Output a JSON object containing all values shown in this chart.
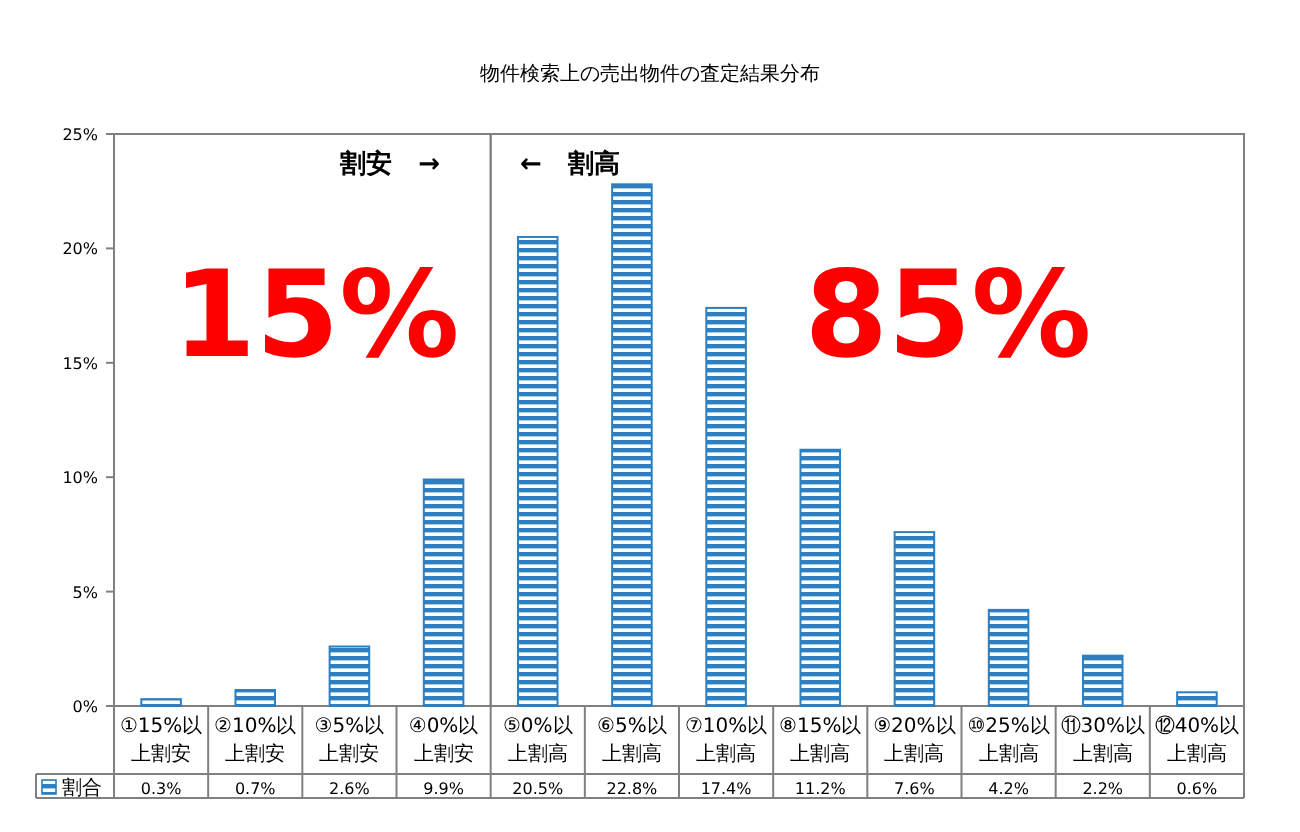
{
  "chart_data": {
    "type": "bar",
    "title": "物件検索上の売出物件の査定結果分布",
    "categories": [
      "①15%以上割安",
      "②10%以上割安",
      "③5%以上割安",
      "④0%以上割安",
      "⑤0%以上割高",
      "⑥5%以上割高",
      "⑦10%以上割高",
      "⑧15%以上割高",
      "⑨20%以上割高",
      "⑩25%以上割高",
      "⑪30%以上割高",
      "⑫40%以上割高"
    ],
    "series": [
      {
        "name": "割合",
        "color": "#2e7fc0",
        "values": [
          0.3,
          0.7,
          2.6,
          9.9,
          20.5,
          22.8,
          17.4,
          11.2,
          7.6,
          4.2,
          2.2,
          0.6
        ],
        "value_labels": [
          "0.3%",
          "0.7%",
          "2.6%",
          "9.9%",
          "20.5%",
          "22.8%",
          "17.4%",
          "11.2%",
          "7.6%",
          "4.2%",
          "2.2%",
          "0.6%"
        ]
      }
    ],
    "ylim": [
      0,
      25
    ],
    "yticks": [
      {
        "value": 0,
        "label": "0%"
      },
      {
        "value": 5,
        "label": "5%"
      },
      {
        "value": 10,
        "label": "10%"
      },
      {
        "value": 15,
        "label": "15%"
      },
      {
        "value": 20,
        "label": "20%"
      },
      {
        "value": 25,
        "label": "25%"
      }
    ],
    "annotations": [
      "割安　→",
      "←　割高",
      "15%",
      "85%"
    ],
    "grid": false,
    "legend": "bottom left"
  }
}
